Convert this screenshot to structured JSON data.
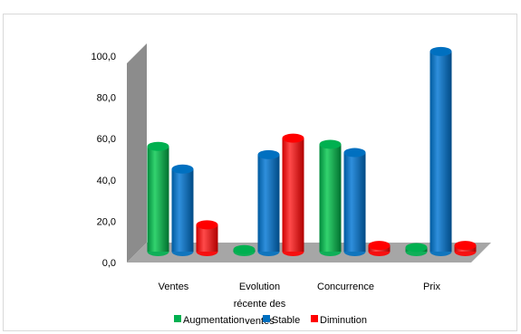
{
  "chart_data": {
    "type": "bar",
    "categories": [
      [
        "Ventes"
      ],
      [
        "Evolution",
        "récente des",
        "ventes"
      ],
      [
        "Concurrence"
      ],
      [
        "Prix"
      ]
    ],
    "series": [
      {
        "name": "Augmentation",
        "color": "#00b050",
        "values": [
          51,
          1,
          52,
          2
        ]
      },
      {
        "name": "Stable",
        "color": "#0070c0",
        "values": [
          40,
          47,
          48,
          97
        ]
      },
      {
        "name": "Diminution",
        "color": "#ff0000",
        "values": [
          13,
          55,
          3,
          3
        ]
      }
    ],
    "yticks": [
      "0,0",
      "20,0",
      "40,0",
      "60,0",
      "80,0",
      "100,0"
    ],
    "ylim": [
      0,
      100
    ],
    "legend_position": "bottom",
    "style": "3d-cylinder",
    "grid": false
  }
}
